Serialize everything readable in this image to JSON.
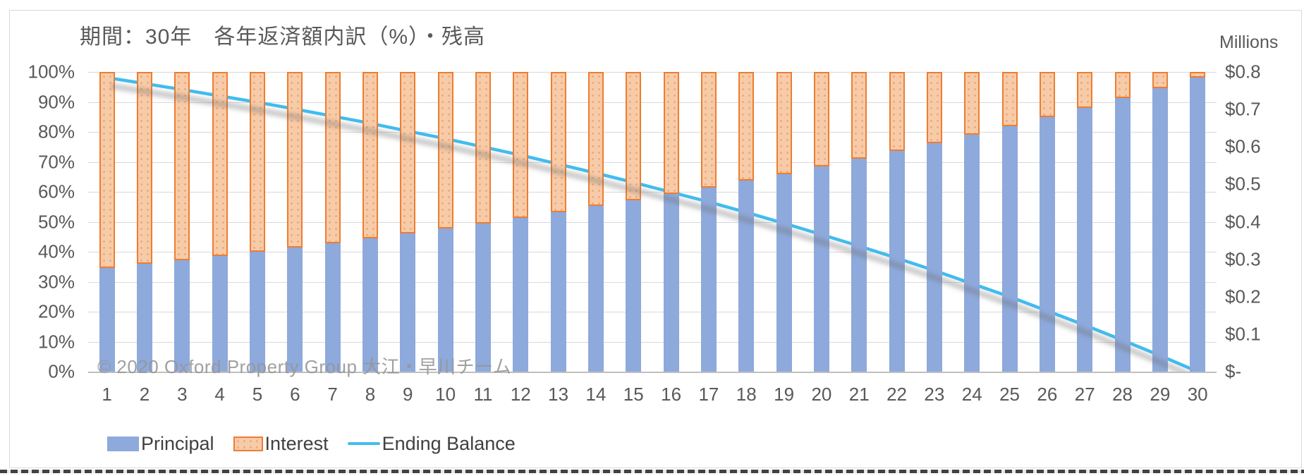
{
  "chart_data": {
    "type": "bar",
    "subtype": "stacked-percent-bar-with-line",
    "title": "期間：30年　各年返済額内訳（%）・残高",
    "categories": [
      1,
      2,
      3,
      4,
      5,
      6,
      7,
      8,
      9,
      10,
      11,
      12,
      13,
      14,
      15,
      16,
      17,
      18,
      19,
      20,
      21,
      22,
      23,
      24,
      25,
      26,
      27,
      28,
      29,
      30
    ],
    "series": [
      {
        "name": "Principal",
        "type": "bar",
        "stack": "payment",
        "axis": "left",
        "color": "#8EA9DB",
        "values": [
          34.6,
          35.9,
          37.2,
          38.5,
          39.9,
          41.4,
          42.9,
          44.5,
          46.1,
          47.8,
          49.5,
          51.3,
          53.2,
          55.2,
          57.2,
          59.3,
          61.5,
          63.7,
          66.0,
          68.5,
          71.0,
          73.6,
          76.3,
          79.0,
          81.9,
          84.9,
          88.0,
          91.3,
          94.6,
          98.1
        ]
      },
      {
        "name": "Interest",
        "type": "bar",
        "stack": "payment",
        "axis": "left",
        "fill_color": "#F8CBA8",
        "border_color": "#ED7D31",
        "pattern": "dotted",
        "values": [
          65.4,
          64.1,
          62.8,
          61.5,
          60.1,
          58.6,
          57.1,
          55.5,
          53.9,
          52.2,
          50.5,
          48.7,
          46.8,
          44.8,
          42.8,
          40.7,
          38.5,
          36.3,
          34.0,
          31.5,
          29.0,
          26.4,
          23.7,
          21.0,
          18.1,
          15.1,
          12.0,
          8.7,
          5.4,
          1.9
        ]
      },
      {
        "name": "Ending Balance",
        "type": "line",
        "axis": "right",
        "color": "#41BDF0",
        "values": [
          0.785,
          0.769,
          0.753,
          0.736,
          0.719,
          0.701,
          0.682,
          0.663,
          0.642,
          0.622,
          0.6,
          0.578,
          0.554,
          0.53,
          0.505,
          0.479,
          0.453,
          0.425,
          0.396,
          0.366,
          0.335,
          0.303,
          0.27,
          0.235,
          0.2,
          0.162,
          0.124,
          0.084,
          0.043,
          0.0
        ]
      }
    ],
    "left_axis": {
      "min": 0,
      "max": 100,
      "unit": "%",
      "tick_labels": [
        "100%",
        "90%",
        "80%",
        "70%",
        "60%",
        "50%",
        "40%",
        "30%",
        "20%",
        "10%",
        "0%"
      ]
    },
    "right_axis": {
      "min": 0,
      "max": 0.8,
      "unit_label": "Millions",
      "tick_labels": [
        "$0.8",
        "$0.7",
        "$0.6",
        "$0.5",
        "$0.4",
        "$0.3",
        "$0.2",
        "$0.1",
        "$-"
      ]
    },
    "grid": true,
    "legend": {
      "position": "bottom-left",
      "entries": [
        "Principal",
        "Interest",
        "Ending Balance"
      ]
    }
  },
  "watermark": "© 2020 Oxford Property Group 大江・早川チーム",
  "colors": {
    "gridline": "#D9D9D9",
    "axis_line": "#BFBFBF",
    "axis_text": "#595959",
    "legend_text": "#404040",
    "watermark_text": "#A6A6A6",
    "background": "#FFFFFF",
    "frame_border": "#D9D9D9"
  }
}
